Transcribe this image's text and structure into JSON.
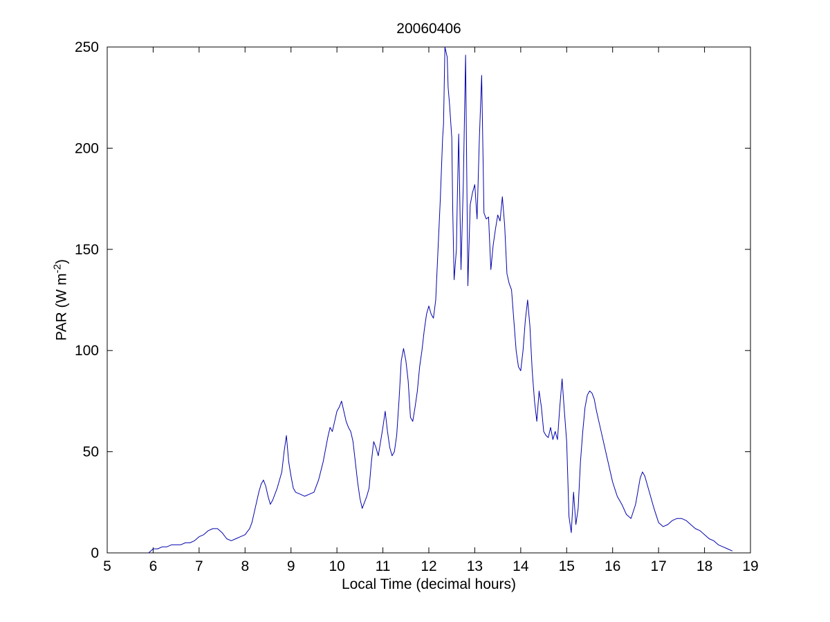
{
  "chart_data": {
    "type": "line",
    "title": "20060406",
    "xlabel": "Local Time (decimal hours)",
    "ylabel": {
      "prefix": "PAR (W m",
      "sup": "-2",
      "suffix": ")"
    },
    "xlim": [
      5,
      19
    ],
    "ylim": [
      0,
      250
    ],
    "xticks": [
      5,
      6,
      7,
      8,
      9,
      10,
      11,
      12,
      13,
      14,
      15,
      16,
      17,
      18,
      19
    ],
    "yticks": [
      0,
      50,
      100,
      150,
      200,
      250
    ],
    "grid": false,
    "legend": "none",
    "line_color": "#0000aa",
    "axis_color": "#000000",
    "background_color": "#ffffff",
    "series": [
      {
        "name": "PAR",
        "points": [
          [
            5.9,
            0
          ],
          [
            5.95,
            1
          ],
          [
            6.0,
            2
          ],
          [
            6.1,
            2
          ],
          [
            6.2,
            3
          ],
          [
            6.3,
            3
          ],
          [
            6.4,
            4
          ],
          [
            6.5,
            4
          ],
          [
            6.6,
            4
          ],
          [
            6.7,
            5
          ],
          [
            6.8,
            5
          ],
          [
            6.9,
            6
          ],
          [
            7.0,
            8
          ],
          [
            7.1,
            9
          ],
          [
            7.2,
            11
          ],
          [
            7.3,
            12
          ],
          [
            7.4,
            12
          ],
          [
            7.5,
            10
          ],
          [
            7.6,
            7
          ],
          [
            7.7,
            6
          ],
          [
            7.8,
            7
          ],
          [
            7.9,
            8
          ],
          [
            8.0,
            9
          ],
          [
            8.1,
            12
          ],
          [
            8.15,
            15
          ],
          [
            8.2,
            20
          ],
          [
            8.3,
            30
          ],
          [
            8.35,
            34
          ],
          [
            8.4,
            36
          ],
          [
            8.45,
            33
          ],
          [
            8.5,
            28
          ],
          [
            8.55,
            24
          ],
          [
            8.6,
            26
          ],
          [
            8.7,
            32
          ],
          [
            8.8,
            40
          ],
          [
            8.85,
            50
          ],
          [
            8.9,
            58
          ],
          [
            8.95,
            45
          ],
          [
            9.0,
            38
          ],
          [
            9.05,
            32
          ],
          [
            9.1,
            30
          ],
          [
            9.2,
            29
          ],
          [
            9.3,
            28
          ],
          [
            9.4,
            29
          ],
          [
            9.5,
            30
          ],
          [
            9.6,
            36
          ],
          [
            9.7,
            45
          ],
          [
            9.8,
            57
          ],
          [
            9.85,
            62
          ],
          [
            9.9,
            60
          ],
          [
            9.95,
            65
          ],
          [
            10.0,
            70
          ],
          [
            10.05,
            72
          ],
          [
            10.1,
            75
          ],
          [
            10.15,
            70
          ],
          [
            10.2,
            65
          ],
          [
            10.25,
            62
          ],
          [
            10.3,
            60
          ],
          [
            10.35,
            55
          ],
          [
            10.4,
            45
          ],
          [
            10.45,
            35
          ],
          [
            10.5,
            27
          ],
          [
            10.55,
            22
          ],
          [
            10.6,
            25
          ],
          [
            10.65,
            28
          ],
          [
            10.7,
            32
          ],
          [
            10.75,
            45
          ],
          [
            10.8,
            55
          ],
          [
            10.85,
            52
          ],
          [
            10.9,
            48
          ],
          [
            10.95,
            55
          ],
          [
            11.0,
            62
          ],
          [
            11.05,
            70
          ],
          [
            11.1,
            60
          ],
          [
            11.15,
            52
          ],
          [
            11.2,
            48
          ],
          [
            11.25,
            50
          ],
          [
            11.3,
            58
          ],
          [
            11.35,
            75
          ],
          [
            11.4,
            95
          ],
          [
            11.45,
            101
          ],
          [
            11.5,
            95
          ],
          [
            11.55,
            85
          ],
          [
            11.6,
            67
          ],
          [
            11.65,
            65
          ],
          [
            11.7,
            72
          ],
          [
            11.75,
            80
          ],
          [
            11.8,
            92
          ],
          [
            11.85,
            100
          ],
          [
            11.9,
            110
          ],
          [
            11.95,
            118
          ],
          [
            12.0,
            122
          ],
          [
            12.05,
            118
          ],
          [
            12.1,
            116
          ],
          [
            12.15,
            125
          ],
          [
            12.2,
            150
          ],
          [
            12.25,
            175
          ],
          [
            12.3,
            205
          ],
          [
            12.32,
            212
          ],
          [
            12.35,
            250
          ],
          [
            12.4,
            245
          ],
          [
            12.42,
            230
          ],
          [
            12.45,
            222
          ],
          [
            12.5,
            205
          ],
          [
            12.52,
            170
          ],
          [
            12.55,
            135
          ],
          [
            12.6,
            150
          ],
          [
            12.62,
            175
          ],
          [
            12.65,
            207
          ],
          [
            12.7,
            140
          ],
          [
            12.75,
            182
          ],
          [
            12.8,
            246
          ],
          [
            12.85,
            132
          ],
          [
            12.9,
            172
          ],
          [
            12.95,
            178
          ],
          [
            13.0,
            182
          ],
          [
            13.05,
            165
          ],
          [
            13.1,
            205
          ],
          [
            13.15,
            236
          ],
          [
            13.2,
            168
          ],
          [
            13.25,
            165
          ],
          [
            13.3,
            166
          ],
          [
            13.35,
            140
          ],
          [
            13.4,
            152
          ],
          [
            13.45,
            160
          ],
          [
            13.5,
            167
          ],
          [
            13.55,
            164
          ],
          [
            13.6,
            176
          ],
          [
            13.65,
            162
          ],
          [
            13.7,
            138
          ],
          [
            13.75,
            133
          ],
          [
            13.8,
            130
          ],
          [
            13.85,
            115
          ],
          [
            13.9,
            100
          ],
          [
            13.95,
            92
          ],
          [
            14.0,
            90
          ],
          [
            14.05,
            100
          ],
          [
            14.1,
            115
          ],
          [
            14.15,
            125
          ],
          [
            14.2,
            112
          ],
          [
            14.25,
            90
          ],
          [
            14.3,
            75
          ],
          [
            14.35,
            65
          ],
          [
            14.4,
            80
          ],
          [
            14.45,
            72
          ],
          [
            14.5,
            60
          ],
          [
            14.55,
            58
          ],
          [
            14.6,
            57
          ],
          [
            14.65,
            62
          ],
          [
            14.7,
            56
          ],
          [
            14.75,
            60
          ],
          [
            14.8,
            56
          ],
          [
            14.85,
            72
          ],
          [
            14.9,
            86
          ],
          [
            14.95,
            70
          ],
          [
            15.0,
            55
          ],
          [
            15.05,
            18
          ],
          [
            15.1,
            10
          ],
          [
            15.15,
            30
          ],
          [
            15.2,
            14
          ],
          [
            15.25,
            22
          ],
          [
            15.3,
            45
          ],
          [
            15.35,
            60
          ],
          [
            15.4,
            72
          ],
          [
            15.45,
            78
          ],
          [
            15.5,
            80
          ],
          [
            15.55,
            79
          ],
          [
            15.6,
            76
          ],
          [
            15.65,
            70
          ],
          [
            15.7,
            65
          ],
          [
            15.75,
            60
          ],
          [
            15.8,
            55
          ],
          [
            15.85,
            50
          ],
          [
            15.9,
            45
          ],
          [
            16.0,
            35
          ],
          [
            16.1,
            28
          ],
          [
            16.2,
            24
          ],
          [
            16.3,
            19
          ],
          [
            16.4,
            17
          ],
          [
            16.5,
            24
          ],
          [
            16.6,
            37
          ],
          [
            16.65,
            40
          ],
          [
            16.7,
            38
          ],
          [
            16.8,
            30
          ],
          [
            16.9,
            22
          ],
          [
            17.0,
            15
          ],
          [
            17.1,
            13
          ],
          [
            17.2,
            14
          ],
          [
            17.3,
            16
          ],
          [
            17.4,
            17
          ],
          [
            17.5,
            17
          ],
          [
            17.6,
            16
          ],
          [
            17.7,
            14
          ],
          [
            17.8,
            12
          ],
          [
            17.9,
            11
          ],
          [
            18.0,
            9
          ],
          [
            18.1,
            7
          ],
          [
            18.2,
            6
          ],
          [
            18.3,
            4
          ],
          [
            18.4,
            3
          ],
          [
            18.5,
            2
          ],
          [
            18.6,
            1
          ]
        ]
      }
    ]
  }
}
